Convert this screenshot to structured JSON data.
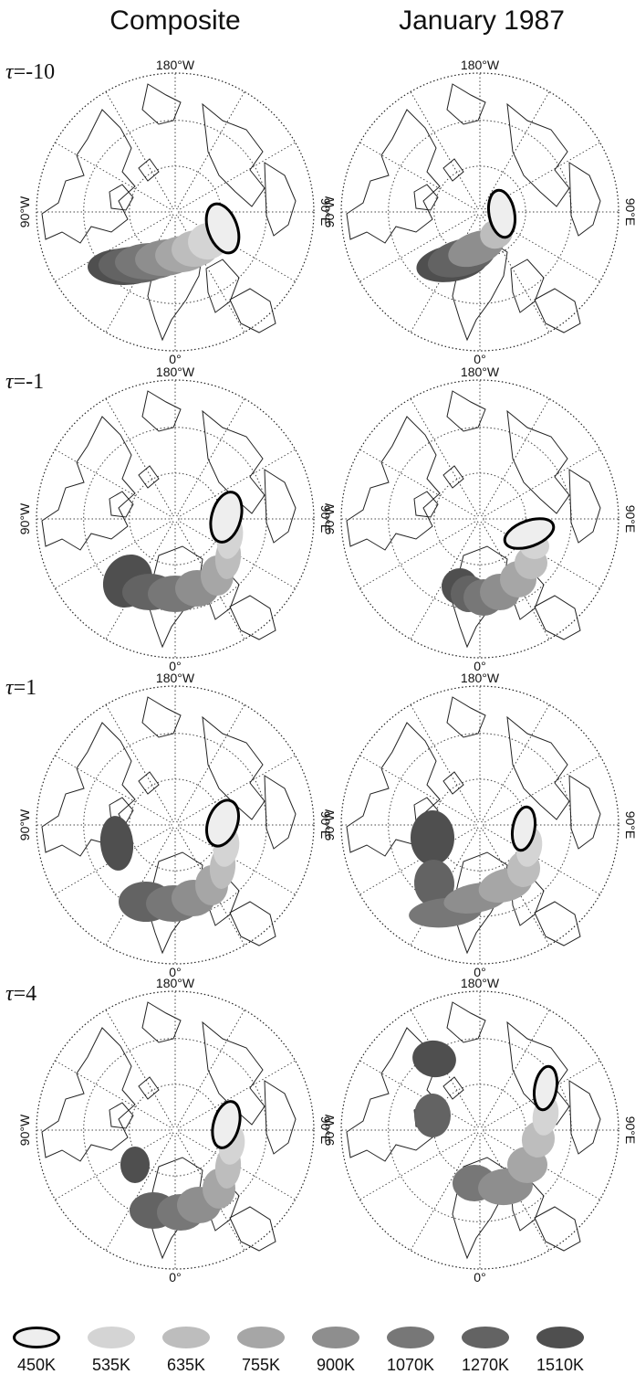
{
  "columns": [
    {
      "title": "Composite"
    },
    {
      "title": "January 1987"
    }
  ],
  "rows": [
    {
      "tau_symbol": "τ",
      "tau_value": "=-10"
    },
    {
      "tau_symbol": "τ",
      "tau_value": "=-1"
    },
    {
      "tau_symbol": "τ",
      "tau_value": "=1"
    },
    {
      "tau_symbol": "τ",
      "tau_value": "=4"
    }
  ],
  "map_labels": {
    "top": "180°W",
    "bottom": "0°",
    "left": "90°W",
    "right": "90°E"
  },
  "legend": [
    {
      "label": "450K",
      "color": "#eeeeee",
      "outlined": true
    },
    {
      "label": "535K",
      "color": "#d4d4d4",
      "outlined": false
    },
    {
      "label": "635K",
      "color": "#bdbdbd",
      "outlined": false
    },
    {
      "label": "755K",
      "color": "#a6a6a6",
      "outlined": false
    },
    {
      "label": "900K",
      "color": "#8e8e8e",
      "outlined": false
    },
    {
      "label": "1070K",
      "color": "#777777",
      "outlined": false
    },
    {
      "label": "1270K",
      "color": "#636363",
      "outlined": false
    },
    {
      "label": "1510K",
      "color": "#4f4f4f",
      "outlined": false
    }
  ]
}
